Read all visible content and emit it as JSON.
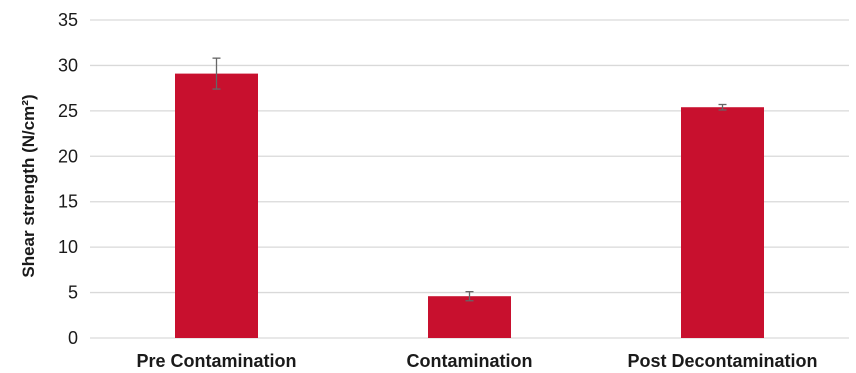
{
  "chart_data": {
    "type": "bar",
    "title": "",
    "xlabel": "",
    "ylabel": "Shear strength (N/cm²)",
    "ylim": [
      0,
      35
    ],
    "yticks": [
      0,
      5,
      10,
      15,
      20,
      25,
      30,
      35
    ],
    "grid": true,
    "categories": [
      "Pre Contamination",
      "Contamination",
      "Post Decontamination"
    ],
    "values": [
      29.1,
      4.6,
      25.4
    ],
    "error": [
      1.7,
      0.5,
      0.3
    ],
    "colors": {
      "bar": "#c8102e",
      "error_bar": "#666666",
      "grid": "#d9d9d9"
    }
  }
}
